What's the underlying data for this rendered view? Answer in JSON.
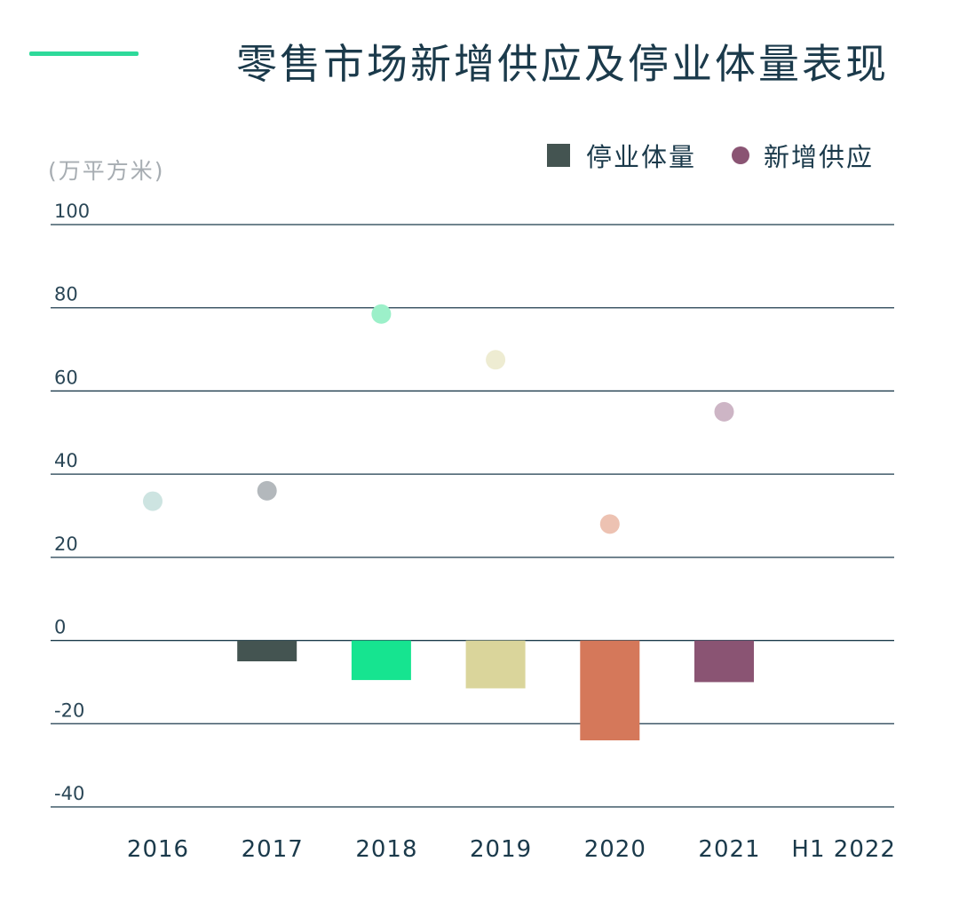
{
  "title": "零售市场新增供应及停业体量表现",
  "unit": "(万平方米)",
  "legend": [
    {
      "label": "停业体量",
      "shape": "square",
      "color": "#445451"
    },
    {
      "label": "新增供应",
      "shape": "circle",
      "color": "#8a5473"
    }
  ],
  "colors": {
    "accent": "#2ed99a",
    "title": "#1b3a4b",
    "gridline": "#1b3a4b"
  },
  "chart_data": {
    "type": "bar",
    "categories": [
      "2016",
      "2017",
      "2018",
      "2019",
      "2020",
      "2021",
      "H1 2022"
    ],
    "y_ticks": [
      100,
      80,
      60,
      40,
      20,
      0,
      -20,
      -40
    ],
    "ylim": [
      -40,
      100
    ],
    "series": [
      {
        "name": "停业体量",
        "mark": "bar",
        "values": [
          null,
          -5,
          -9.5,
          -11.5,
          -24,
          -10,
          null
        ],
        "colors": [
          "#445451",
          "#445451",
          "#16e490",
          "#dad59b",
          "#d5785a",
          "#8a5473",
          "#445451"
        ]
      },
      {
        "name": "新增供应",
        "mark": "point",
        "values": [
          33.5,
          36,
          78.5,
          67.5,
          28,
          55,
          null
        ],
        "colors": [
          "#cde4e1",
          "#b3b8bc",
          "#9cf0c9",
          "#eeecd2",
          "#edc2b2",
          "#cdb5c5",
          "#cdb5c5"
        ]
      }
    ],
    "grid": true
  }
}
